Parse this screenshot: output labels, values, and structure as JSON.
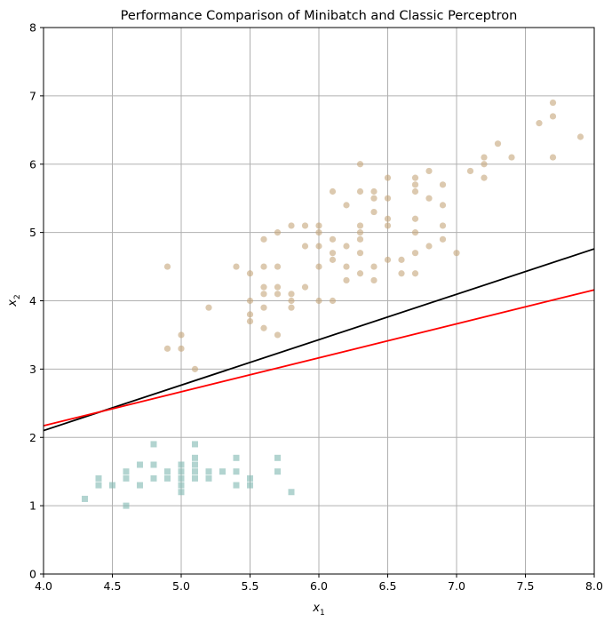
{
  "chart_data": {
    "type": "scatter",
    "title": "Performance Comparison of Minibatch and Classic Perceptron",
    "xlabel_main": "x",
    "xlabel_sub": "1",
    "ylabel_main": "x",
    "ylabel_sub": "2",
    "xlim": [
      4.0,
      8.0
    ],
    "ylim": [
      0,
      8
    ],
    "xticks": [
      4.0,
      4.5,
      5.0,
      5.5,
      6.0,
      6.5,
      7.0,
      7.5,
      8.0
    ],
    "xtick_labels": [
      "4.0",
      "4.5",
      "5.0",
      "5.5",
      "6.0",
      "6.5",
      "7.0",
      "7.5",
      "8.0"
    ],
    "yticks": [
      0,
      1,
      2,
      3,
      4,
      5,
      6,
      7,
      8
    ],
    "ytick_labels": [
      "0",
      "1",
      "2",
      "3",
      "4",
      "5",
      "6",
      "7",
      "8"
    ],
    "grid": true,
    "series": [
      {
        "marker": "square",
        "color": "#7fb8b0",
        "points": [
          [
            4.3,
            1.1
          ],
          [
            4.4,
            1.3
          ],
          [
            4.4,
            1.4
          ],
          [
            4.5,
            1.3
          ],
          [
            4.6,
            1.0
          ],
          [
            4.6,
            1.4
          ],
          [
            4.6,
            1.5
          ],
          [
            4.7,
            1.3
          ],
          [
            4.7,
            1.6
          ],
          [
            4.8,
            1.4
          ],
          [
            4.8,
            1.6
          ],
          [
            4.8,
            1.9
          ],
          [
            4.9,
            1.4
          ],
          [
            4.9,
            1.5
          ],
          [
            5.0,
            1.2
          ],
          [
            5.0,
            1.3
          ],
          [
            5.0,
            1.4
          ],
          [
            5.0,
            1.5
          ],
          [
            5.0,
            1.6
          ],
          [
            5.1,
            1.4
          ],
          [
            5.1,
            1.5
          ],
          [
            5.1,
            1.6
          ],
          [
            5.1,
            1.7
          ],
          [
            5.1,
            1.9
          ],
          [
            5.2,
            1.4
          ],
          [
            5.2,
            1.5
          ],
          [
            5.3,
            1.5
          ],
          [
            5.4,
            1.3
          ],
          [
            5.4,
            1.5
          ],
          [
            5.4,
            1.7
          ],
          [
            5.5,
            1.3
          ],
          [
            5.5,
            1.4
          ],
          [
            5.7,
            1.5
          ],
          [
            5.7,
            1.7
          ],
          [
            5.8,
            1.2
          ]
        ]
      },
      {
        "marker": "circle",
        "color": "#c4a57a",
        "points": [
          [
            4.9,
            4.5
          ],
          [
            4.9,
            3.3
          ],
          [
            5.0,
            3.5
          ],
          [
            5.0,
            3.3
          ],
          [
            5.1,
            3.0
          ],
          [
            5.2,
            3.9
          ],
          [
            5.4,
            4.5
          ],
          [
            5.5,
            4.4
          ],
          [
            5.5,
            4.0
          ],
          [
            5.5,
            3.8
          ],
          [
            5.5,
            3.7
          ],
          [
            5.6,
            4.9
          ],
          [
            5.6,
            4.5
          ],
          [
            5.6,
            4.2
          ],
          [
            5.6,
            4.1
          ],
          [
            5.6,
            3.9
          ],
          [
            5.6,
            3.6
          ],
          [
            5.7,
            5.0
          ],
          [
            5.7,
            4.5
          ],
          [
            5.7,
            4.2
          ],
          [
            5.7,
            4.1
          ],
          [
            5.7,
            3.5
          ],
          [
            5.8,
            5.1
          ],
          [
            5.8,
            4.1
          ],
          [
            5.8,
            4.0
          ],
          [
            5.8,
            3.9
          ],
          [
            5.9,
            5.1
          ],
          [
            5.9,
            4.8
          ],
          [
            5.9,
            4.2
          ],
          [
            6.0,
            5.1
          ],
          [
            6.0,
            5.0
          ],
          [
            6.0,
            4.8
          ],
          [
            6.0,
            4.5
          ],
          [
            6.0,
            4.0
          ],
          [
            6.1,
            5.6
          ],
          [
            6.1,
            4.9
          ],
          [
            6.1,
            4.7
          ],
          [
            6.1,
            4.6
          ],
          [
            6.1,
            4.0
          ],
          [
            6.2,
            5.4
          ],
          [
            6.2,
            4.8
          ],
          [
            6.2,
            4.5
          ],
          [
            6.2,
            4.3
          ],
          [
            6.3,
            6.0
          ],
          [
            6.3,
            5.6
          ],
          [
            6.3,
            5.1
          ],
          [
            6.3,
            5.0
          ],
          [
            6.3,
            4.9
          ],
          [
            6.3,
            4.7
          ],
          [
            6.3,
            4.4
          ],
          [
            6.4,
            5.6
          ],
          [
            6.4,
            5.5
          ],
          [
            6.4,
            5.3
          ],
          [
            6.4,
            4.5
          ],
          [
            6.4,
            4.3
          ],
          [
            6.5,
            5.8
          ],
          [
            6.5,
            5.5
          ],
          [
            6.5,
            5.2
          ],
          [
            6.5,
            5.1
          ],
          [
            6.5,
            4.6
          ],
          [
            6.6,
            4.6
          ],
          [
            6.6,
            4.4
          ],
          [
            6.7,
            5.8
          ],
          [
            6.7,
            5.7
          ],
          [
            6.7,
            5.6
          ],
          [
            6.7,
            5.2
          ],
          [
            6.7,
            5.0
          ],
          [
            6.7,
            4.7
          ],
          [
            6.7,
            4.4
          ],
          [
            6.8,
            5.9
          ],
          [
            6.8,
            5.5
          ],
          [
            6.8,
            4.8
          ],
          [
            6.9,
            5.7
          ],
          [
            6.9,
            5.4
          ],
          [
            6.9,
            5.1
          ],
          [
            6.9,
            4.9
          ],
          [
            7.0,
            4.7
          ],
          [
            7.1,
            5.9
          ],
          [
            7.2,
            6.1
          ],
          [
            7.2,
            6.0
          ],
          [
            7.2,
            5.8
          ],
          [
            7.3,
            6.3
          ],
          [
            7.4,
            6.1
          ],
          [
            7.6,
            6.6
          ],
          [
            7.7,
            6.9
          ],
          [
            7.7,
            6.7
          ],
          [
            7.7,
            6.1
          ],
          [
            7.9,
            6.4
          ]
        ]
      }
    ],
    "lines": [
      {
        "color": "#000000",
        "x": [
          4.0,
          8.0
        ],
        "y": [
          2.1,
          4.76
        ]
      },
      {
        "color": "#ff0000",
        "x": [
          4.0,
          8.0
        ],
        "y": [
          2.17,
          4.16
        ]
      }
    ]
  }
}
